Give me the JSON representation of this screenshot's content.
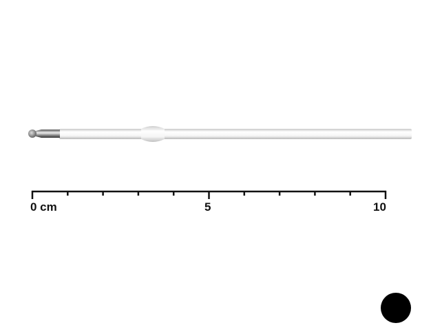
{
  "ruler": {
    "labels": [
      "0 cm",
      "5",
      "10"
    ],
    "range_cm": [
      0,
      10
    ],
    "tick_step_cm": 1
  },
  "colors": {
    "ink_dot": "#000000",
    "refill_tube": "#ffffff",
    "ruler": "#111111"
  }
}
